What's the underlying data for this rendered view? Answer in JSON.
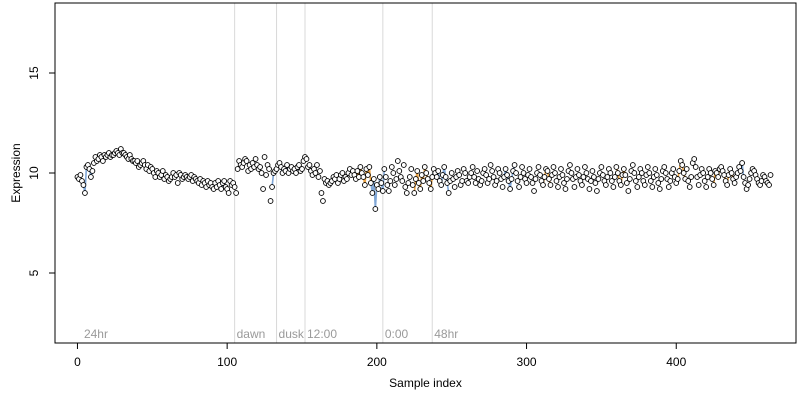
{
  "chart_data": {
    "type": "scatter",
    "title": "",
    "xlabel": "Sample index",
    "ylabel": "Expression",
    "xlim": [
      -15,
      480
    ],
    "ylim": [
      1.5,
      18.5
    ],
    "x_ticks": [
      0,
      100,
      200,
      300,
      400
    ],
    "y_ticks": [
      5,
      10,
      15
    ],
    "grid": false,
    "legend": "none",
    "colors": {
      "point_fill": "#ffffff",
      "point_stroke": "#000000",
      "segment_blue": "#7fa6d6",
      "segment_orange": "#e8a040",
      "vline": "#d9d9d9",
      "annotation_text": "#9a9a9a"
    },
    "annotations": [
      {
        "x": 3,
        "label": "24hr"
      },
      {
        "x": 105,
        "label": "dawn"
      },
      {
        "x": 133,
        "label": "dusk"
      },
      {
        "x": 152,
        "label": "12:00"
      },
      {
        "x": 204,
        "label": "0:00"
      },
      {
        "x": 237,
        "label": "48hr"
      }
    ],
    "vlines": [
      105,
      133,
      152,
      204,
      237
    ],
    "series": [
      {
        "x_start": 0,
        "y": [
          9.8,
          9.7,
          9.9,
          9.6,
          9.4,
          9.0,
          10.3,
          10.4,
          10.2,
          9.8,
          10.1,
          10.5,
          10.8,
          10.6,
          10.7,
          10.9,
          10.8,
          10.6,
          10.9,
          10.8,
          10.9,
          11.0,
          10.8,
          10.9,
          10.9,
          11.0,
          11.1,
          11.0,
          10.9,
          11.2,
          11.0,
          11.0,
          10.9,
          10.8,
          10.7,
          10.9,
          10.7,
          10.6,
          10.6,
          10.5,
          10.6,
          10.3,
          10.4,
          10.5,
          10.6,
          10.4,
          10.2,
          10.4,
          10.1,
          10.3,
          10.2,
          10.0,
          9.8,
          10.1,
          10.0,
          9.8,
          9.9,
          10.1,
          9.7,
          9.9,
          9.8,
          9.6,
          9.7,
          9.8,
          10.0,
          9.8,
          9.9,
          9.5,
          10.0,
          9.9,
          9.7,
          9.8,
          9.9,
          9.8,
          9.7,
          9.8,
          9.9,
          9.6,
          9.8,
          9.7,
          9.6,
          9.5,
          9.7,
          9.4,
          9.6,
          9.5,
          9.3,
          9.6,
          9.4,
          9.5,
          9.3,
          9.2,
          9.5,
          9.3,
          9.6,
          9.4,
          9.2,
          9.5,
          9.6,
          9.3,
          9.2,
          9.0,
          9.6,
          9.4,
          9.5,
          9.3,
          9.0,
          10.2,
          10.6,
          10.4,
          10.3,
          10.5,
          10.7,
          10.6,
          10.1,
          10.4,
          10.2,
          10.5,
          10.3,
          10.7,
          10.4,
          10.2,
          10.3,
          10.0,
          9.2,
          10.8,
          9.9,
          10.4,
          10.2,
          8.6,
          9.3,
          10.0,
          10.1,
          10.2,
          10.4,
          10.5,
          10.3,
          10.0,
          10.2,
          10.1,
          10.4,
          10.0,
          10.2,
          10.3,
          10.1,
          10.2,
          10.0,
          10.3,
          10.4,
          10.1,
          10.2,
          10.6,
          10.8,
          10.7,
          10.3,
          10.4,
          10.1,
          9.9,
          10.2,
          10.0,
          10.4,
          9.8,
          10.1,
          9.0,
          8.6,
          9.7,
          9.5,
          9.6,
          9.4,
          9.5,
          9.6,
          9.8,
          9.7,
          9.9,
          9.5,
          9.7,
          9.9,
          10.0,
          9.6,
          9.8,
          9.7,
          10.0,
          10.2,
          9.9,
          10.1,
          9.9,
          9.7,
          10.1,
          9.8,
          10.3,
          10.0,
          9.8,
          9.4,
          10.2,
          9.9,
          10.3,
          9.5,
          9.0,
          9.7,
          8.2,
          9.4,
          9.2,
          9.8,
          9.5,
          9.1,
          10.2,
          9.8,
          9.4,
          9.1,
          9.6,
          10.3,
          10.0,
          9.4,
          9.7,
          10.6,
          10.1,
          9.8,
          9.6,
          10.4,
          9.3,
          9.0,
          9.5,
          9.8,
          10.2,
          9.4,
          9.0,
          9.7,
          10.1,
          9.5,
          9.2,
          9.9,
          9.6,
          10.3,
          10.0,
          9.7,
          9.5,
          9.2,
          9.8,
          10.2,
          10.0,
          9.8,
          10.1,
          9.6,
          9.4,
          9.9,
          10.3,
          9.8,
          9.5,
          9.0,
          9.6,
          10.0,
          9.7,
          9.3,
          9.8,
          10.1,
          9.9,
          9.4,
          9.6,
          10.2,
          10.0,
          9.6,
          9.5,
          9.8,
          10.0,
          10.3,
          9.8,
          9.5,
          10.1,
          9.7,
          9.4,
          9.6,
          10.0,
          10.2,
          9.9,
          9.5,
          9.7,
          10.4,
          10.1,
          9.8,
          9.4,
          9.6,
          10.2,
          10.0,
          9.7,
          9.3,
          9.8,
          10.2,
          9.9,
          9.6,
          9.2,
          9.7,
          10.1,
          10.4,
          10.0,
          9.6,
          9.3,
          9.8,
          10.3,
          10.0,
          9.7,
          9.5,
          9.9,
          10.2,
          9.8,
          9.5,
          9.1,
          9.7,
          10.0,
          10.3,
          9.9,
          9.6,
          9.4,
          9.8,
          10.2,
          10.1,
          9.7,
          9.4,
          9.9,
          10.3,
          10.0,
          9.6,
          9.3,
          9.8,
          10.2,
          9.9,
          9.5,
          9.2,
          9.7,
          10.1,
          10.4,
          10.0,
          9.7,
          9.3,
          9.8,
          10.2,
          9.9,
          9.6,
          9.4,
          9.8,
          10.3,
          10.0,
          9.7,
          9.2,
          9.6,
          10.1,
          9.8,
          9.5,
          9.1,
          9.7,
          10.0,
          10.3,
          9.9,
          9.6,
          9.4,
          9.8,
          10.2,
          10.0,
          9.6,
          9.3,
          9.8,
          10.3,
          10.0,
          9.6,
          9.4,
          9.9,
          10.2,
          9.9,
          9.5,
          9.1,
          9.7,
          10.1,
          10.4,
          10.0,
          9.6,
          9.3,
          9.8,
          10.2,
          10.0,
          9.6,
          9.4,
          9.9,
          10.3,
          10.0,
          9.6,
          9.3,
          9.8,
          10.2,
          9.9,
          9.5,
          9.2,
          9.7,
          10.1,
          10.3,
          10.0,
          9.7,
          9.3,
          9.6,
          10.0,
          10.2,
          9.8,
          9.5,
          9.7,
          10.1,
          10.6,
          10.4,
          10.0,
          9.7,
          10.2,
          9.6,
          9.3,
          9.8,
          10.5,
          10.7,
          10.3,
          9.8,
          9.4,
          9.9,
          10.2,
          10.0,
          9.6,
          9.3,
          9.8,
          10.2,
          10.0,
          9.7,
          9.4,
          10.1,
          10.0,
          9.8,
          10.2,
          10.3,
          10.1,
          9.9,
          9.6,
          9.4,
          9.9,
          10.2,
          10.0,
          9.7,
          9.5,
          9.8,
          10.0,
          10.3,
          10.1,
          10.5,
          9.8,
          9.5,
          9.2,
          9.4,
          9.7,
          10.0,
          10.2,
          10.1,
          9.9,
          9.7,
          9.5,
          9.4,
          9.6,
          9.9,
          9.8,
          9.6,
          9.5,
          9.4,
          9.9
        ]
      }
    ],
    "segment_colors": [
      {
        "from": 3,
        "to": 10,
        "color": "blue"
      },
      {
        "from": 14,
        "to": 22,
        "color": "orange"
      },
      {
        "from": 55,
        "to": 62,
        "color": "blue"
      },
      {
        "from": 93,
        "to": 100,
        "color": "blue"
      },
      {
        "from": 130,
        "to": 150,
        "color": "blue"
      },
      {
        "from": 186,
        "to": 196,
        "color": "orange"
      },
      {
        "from": 196,
        "to": 205,
        "color": "blue"
      },
      {
        "from": 225,
        "to": 238,
        "color": "orange"
      },
      {
        "from": 237,
        "to": 248,
        "color": "blue"
      },
      {
        "from": 285,
        "to": 292,
        "color": "blue"
      },
      {
        "from": 310,
        "to": 316,
        "color": "orange"
      },
      {
        "from": 360,
        "to": 366,
        "color": "orange"
      },
      {
        "from": 400,
        "to": 406,
        "color": "orange"
      },
      {
        "from": 425,
        "to": 438,
        "color": "orange"
      },
      {
        "from": 438,
        "to": 445,
        "color": "blue"
      }
    ]
  }
}
